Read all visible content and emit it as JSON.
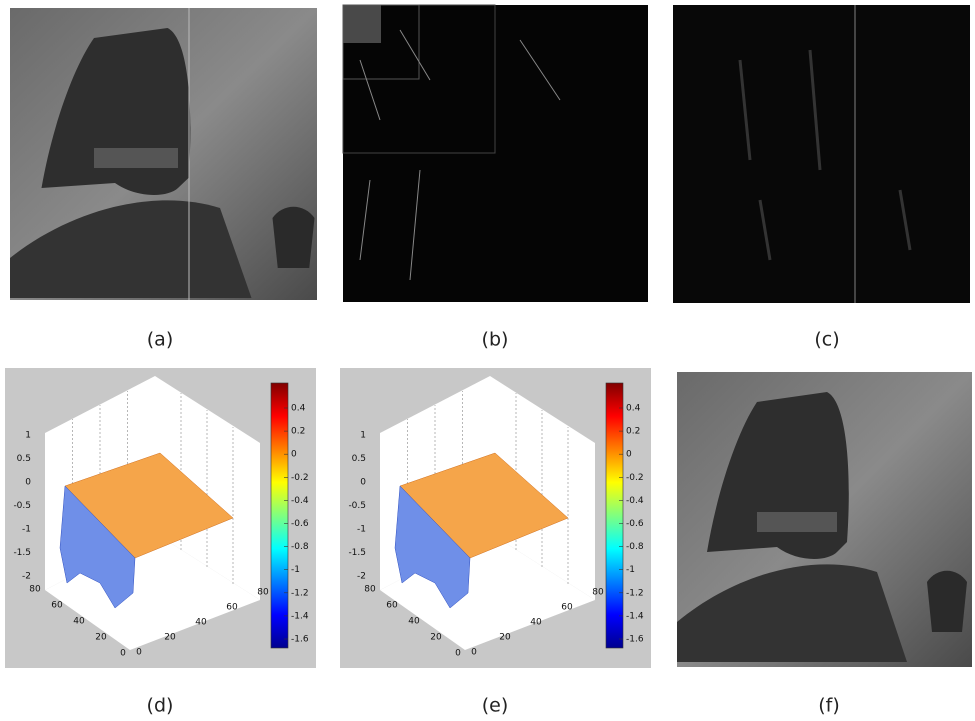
{
  "captions": [
    "(a)",
    "(b)",
    "(c)",
    "(d)",
    "(e)",
    "(f)"
  ],
  "plots": [
    {
      "z_ticks": [
        1,
        0.5,
        0,
        -0.5,
        -1,
        -1.5,
        -2
      ],
      "y_ticks": [
        80,
        60,
        40,
        20,
        0
      ],
      "x_ticks": [
        0,
        20,
        40,
        60,
        80
      ],
      "colorbar_ticks": [
        0.4,
        0.2,
        0,
        -0.2,
        -0.4,
        -0.6,
        -0.8,
        -1,
        -1.2,
        -1.4,
        -1.6
      ]
    },
    {
      "z_ticks": [
        1,
        0.5,
        0,
        -0.5,
        -1,
        -1.5,
        -2
      ],
      "y_ticks": [
        80,
        60,
        40,
        20,
        0
      ],
      "x_ticks": [
        0,
        20,
        40,
        60,
        80
      ],
      "colorbar_ticks": [
        0.4,
        0.2,
        0,
        -0.2,
        -0.4,
        -0.6,
        -0.8,
        -1,
        -1.2,
        -1.4,
        -1.6
      ]
    }
  ]
}
